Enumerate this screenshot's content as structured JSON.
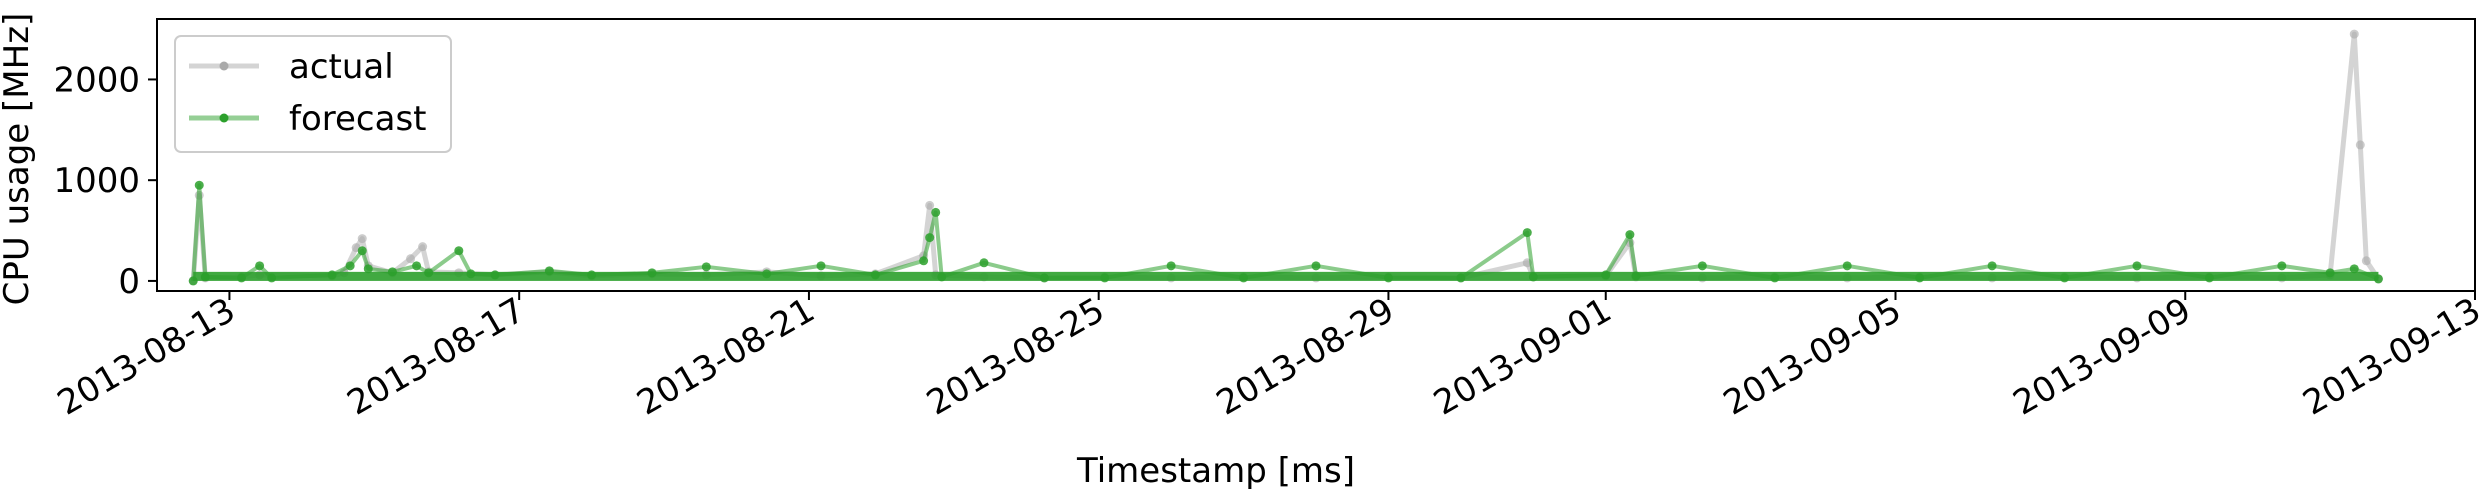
{
  "chart_data": {
    "type": "line",
    "xlabel": "Timestamp [ms]",
    "ylabel": "CPU usage [MHz]",
    "x_range": [
      "2013-08-12T00:00",
      "2013-09-13T00:00"
    ],
    "ylim": [
      -100,
      2600
    ],
    "x_ticks": [
      "2013-08-13",
      "2013-08-17",
      "2013-08-21",
      "2013-08-25",
      "2013-08-29",
      "2013-09-01",
      "2013-09-05",
      "2013-09-09",
      "2013-09-13"
    ],
    "y_ticks": [
      0,
      1000,
      2000
    ],
    "grid": false,
    "legend": {
      "placement": "top-left",
      "entries": [
        "actual",
        "forecast"
      ]
    },
    "series": [
      {
        "name": "actual",
        "color": "#aaaaaa",
        "points": [
          [
            "2013-08-12T12:00",
            0
          ],
          [
            "2013-08-12T14:00",
            850
          ],
          [
            "2013-08-12T16:00",
            30
          ],
          [
            "2013-08-13T04:00",
            40
          ],
          [
            "2013-08-13T10:00",
            60
          ],
          [
            "2013-08-14T10:00",
            50
          ],
          [
            "2013-08-14T14:00",
            80
          ],
          [
            "2013-08-14T18:00",
            330
          ],
          [
            "2013-08-14T20:00",
            420
          ],
          [
            "2013-08-14T22:00",
            150
          ],
          [
            "2013-08-15T06:00",
            80
          ],
          [
            "2013-08-15T12:00",
            220
          ],
          [
            "2013-08-15T16:00",
            340
          ],
          [
            "2013-08-15T18:00",
            90
          ],
          [
            "2013-08-16T04:00",
            80
          ],
          [
            "2013-08-16T16:00",
            60
          ],
          [
            "2013-08-17T10:00",
            90
          ],
          [
            "2013-08-18T00:00",
            50
          ],
          [
            "2013-08-18T20:00",
            70
          ],
          [
            "2013-08-19T14:00",
            60
          ],
          [
            "2013-08-20T10:00",
            90
          ],
          [
            "2013-08-21T04:00",
            50
          ],
          [
            "2013-08-21T22:00",
            70
          ],
          [
            "2013-08-22T14:00",
            250
          ],
          [
            "2013-08-22T16:00",
            750
          ],
          [
            "2013-08-22T18:00",
            60
          ],
          [
            "2013-08-23T10:00",
            40
          ],
          [
            "2013-08-24T06:00",
            30
          ],
          [
            "2013-08-25T02:00",
            40
          ],
          [
            "2013-08-26T00:00",
            30
          ],
          [
            "2013-08-27T00:00",
            40
          ],
          [
            "2013-08-28T00:00",
            30
          ],
          [
            "2013-08-29T00:00",
            40
          ],
          [
            "2013-08-30T00:00",
            30
          ],
          [
            "2013-08-30T22:00",
            180
          ],
          [
            "2013-08-31T00:00",
            40
          ],
          [
            "2013-09-01T00:00",
            50
          ],
          [
            "2013-09-01T08:00",
            380
          ],
          [
            "2013-09-01T10:00",
            40
          ],
          [
            "2013-09-02T08:00",
            30
          ],
          [
            "2013-09-03T08:00",
            40
          ],
          [
            "2013-09-04T08:00",
            30
          ],
          [
            "2013-09-05T08:00",
            40
          ],
          [
            "2013-09-06T08:00",
            30
          ],
          [
            "2013-09-07T08:00",
            40
          ],
          [
            "2013-09-08T08:00",
            30
          ],
          [
            "2013-09-09T08:00",
            40
          ],
          [
            "2013-09-10T08:00",
            30
          ],
          [
            "2013-09-11T00:00",
            60
          ],
          [
            "2013-09-11T08:00",
            2450
          ],
          [
            "2013-09-11T10:00",
            1350
          ],
          [
            "2013-09-11T12:00",
            200
          ],
          [
            "2013-09-11T16:00",
            20
          ]
        ]
      },
      {
        "name": "forecast",
        "color": "#2ca02c",
        "points": [
          [
            "2013-08-12T12:00",
            0
          ],
          [
            "2013-08-12T14:00",
            950
          ],
          [
            "2013-08-12T16:00",
            40
          ],
          [
            "2013-08-13T04:00",
            30
          ],
          [
            "2013-08-13T10:00",
            150
          ],
          [
            "2013-08-13T14:00",
            30
          ],
          [
            "2013-08-14T10:00",
            60
          ],
          [
            "2013-08-14T16:00",
            150
          ],
          [
            "2013-08-14T20:00",
            300
          ],
          [
            "2013-08-14T22:00",
            120
          ],
          [
            "2013-08-15T06:00",
            90
          ],
          [
            "2013-08-15T14:00",
            150
          ],
          [
            "2013-08-15T18:00",
            80
          ],
          [
            "2013-08-16T04:00",
            300
          ],
          [
            "2013-08-16T08:00",
            70
          ],
          [
            "2013-08-16T16:00",
            60
          ],
          [
            "2013-08-17T10:00",
            100
          ],
          [
            "2013-08-18T00:00",
            60
          ],
          [
            "2013-08-18T20:00",
            80
          ],
          [
            "2013-08-19T14:00",
            140
          ],
          [
            "2013-08-20T10:00",
            70
          ],
          [
            "2013-08-21T04:00",
            150
          ],
          [
            "2013-08-21T22:00",
            60
          ],
          [
            "2013-08-22T14:00",
            200
          ],
          [
            "2013-08-22T16:00",
            430
          ],
          [
            "2013-08-22T18:00",
            680
          ],
          [
            "2013-08-22T20:00",
            40
          ],
          [
            "2013-08-23T10:00",
            180
          ],
          [
            "2013-08-24T06:00",
            30
          ],
          [
            "2013-08-25T02:00",
            30
          ],
          [
            "2013-08-26T00:00",
            150
          ],
          [
            "2013-08-27T00:00",
            30
          ],
          [
            "2013-08-28T00:00",
            150
          ],
          [
            "2013-08-29T00:00",
            30
          ],
          [
            "2013-08-30T00:00",
            30
          ],
          [
            "2013-08-30T22:00",
            480
          ],
          [
            "2013-08-31T00:00",
            40
          ],
          [
            "2013-09-01T00:00",
            60
          ],
          [
            "2013-09-01T08:00",
            460
          ],
          [
            "2013-09-01T10:00",
            50
          ],
          [
            "2013-09-02T08:00",
            150
          ],
          [
            "2013-09-03T08:00",
            30
          ],
          [
            "2013-09-04T08:00",
            150
          ],
          [
            "2013-09-05T08:00",
            30
          ],
          [
            "2013-09-06T08:00",
            150
          ],
          [
            "2013-09-07T08:00",
            30
          ],
          [
            "2013-09-08T08:00",
            150
          ],
          [
            "2013-09-09T08:00",
            30
          ],
          [
            "2013-09-10T08:00",
            150
          ],
          [
            "2013-09-11T00:00",
            80
          ],
          [
            "2013-09-11T08:00",
            120
          ],
          [
            "2013-09-11T16:00",
            20
          ]
        ]
      }
    ]
  }
}
